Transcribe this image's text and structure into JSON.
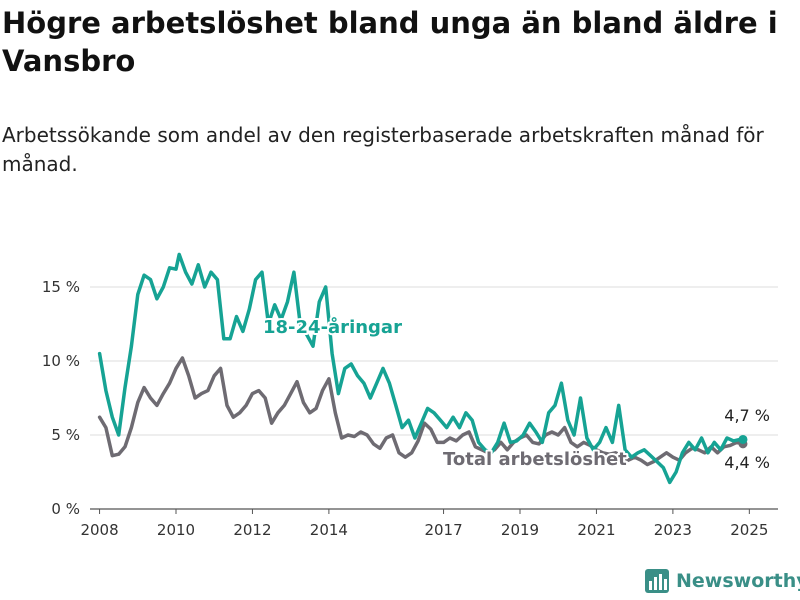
{
  "header": {
    "title": "Högre arbetslöshet bland unga än bland äldre i Vansbro",
    "subtitle": "Arbetssökande som andel av den registerbaserade arbetskraften månad för månad."
  },
  "footer": {
    "brand": "Newsworthy",
    "logo_icon": "bar-chart-logo-icon"
  },
  "chart_data": {
    "type": "line",
    "x_ticks": [
      "2008",
      "2010",
      "2012",
      "2014",
      "2017",
      "2019",
      "2021",
      "2023",
      "2025"
    ],
    "y_ticks": [
      "0 %",
      "5 %",
      "10 %",
      "15 %"
    ],
    "ylim": [
      0,
      17.5
    ],
    "grid": true,
    "series": [
      {
        "name": "18-24-åringar",
        "color": "#16a394",
        "end_label": "4,7 %",
        "points": [
          [
            "2008-01",
            10.5
          ],
          [
            "2008-03",
            8.0
          ],
          [
            "2008-05",
            6.2
          ],
          [
            "2008-07",
            5.0
          ],
          [
            "2008-09",
            8.2
          ],
          [
            "2008-11",
            11.0
          ],
          [
            "2009-01",
            14.5
          ],
          [
            "2009-03",
            15.8
          ],
          [
            "2009-05",
            15.5
          ],
          [
            "2009-07",
            14.2
          ],
          [
            "2009-09",
            15.0
          ],
          [
            "2009-11",
            16.3
          ],
          [
            "2010-01",
            16.2
          ],
          [
            "2010-02",
            17.2
          ],
          [
            "2010-04",
            16.0
          ],
          [
            "2010-06",
            15.2
          ],
          [
            "2010-08",
            16.5
          ],
          [
            "2010-10",
            15.0
          ],
          [
            "2010-12",
            16.0
          ],
          [
            "2011-02",
            15.5
          ],
          [
            "2011-04",
            11.5
          ],
          [
            "2011-06",
            11.5
          ],
          [
            "2011-08",
            13.0
          ],
          [
            "2011-10",
            12.0
          ],
          [
            "2011-12",
            13.5
          ],
          [
            "2012-02",
            15.5
          ],
          [
            "2012-04",
            16.0
          ],
          [
            "2012-06",
            12.5
          ],
          [
            "2012-08",
            13.8
          ],
          [
            "2012-10",
            12.8
          ],
          [
            "2012-12",
            14.0
          ],
          [
            "2013-02",
            16.0
          ],
          [
            "2013-04",
            12.5
          ],
          [
            "2013-06",
            11.8
          ],
          [
            "2013-08",
            11.0
          ],
          [
            "2013-10",
            14.0
          ],
          [
            "2013-12",
            15.0
          ],
          [
            "2014-02",
            10.5
          ],
          [
            "2014-04",
            7.8
          ],
          [
            "2014-06",
            9.5
          ],
          [
            "2014-08",
            9.8
          ],
          [
            "2014-10",
            9.0
          ],
          [
            "2014-12",
            8.5
          ],
          [
            "2015-02",
            7.5
          ],
          [
            "2015-04",
            8.5
          ],
          [
            "2015-06",
            9.5
          ],
          [
            "2015-08",
            8.5
          ],
          [
            "2015-10",
            7.0
          ],
          [
            "2015-12",
            5.5
          ],
          [
            "2016-02",
            6.0
          ],
          [
            "2016-04",
            4.8
          ],
          [
            "2016-06",
            5.8
          ],
          [
            "2016-08",
            6.8
          ],
          [
            "2016-10",
            6.5
          ],
          [
            "2016-12",
            6.0
          ],
          [
            "2017-02",
            5.5
          ],
          [
            "2017-04",
            6.2
          ],
          [
            "2017-06",
            5.5
          ],
          [
            "2017-08",
            6.5
          ],
          [
            "2017-10",
            6.0
          ],
          [
            "2017-12",
            4.5
          ],
          [
            "2018-02",
            4.0
          ],
          [
            "2018-04",
            3.8
          ],
          [
            "2018-06",
            4.5
          ],
          [
            "2018-08",
            5.8
          ],
          [
            "2018-10",
            4.5
          ],
          [
            "2018-12",
            4.6
          ],
          [
            "2019-02",
            5.0
          ],
          [
            "2019-04",
            5.8
          ],
          [
            "2019-06",
            5.2
          ],
          [
            "2019-08",
            4.5
          ],
          [
            "2019-10",
            6.5
          ],
          [
            "2019-12",
            7.0
          ],
          [
            "2020-02",
            8.5
          ],
          [
            "2020-04",
            6.0
          ],
          [
            "2020-06",
            5.0
          ],
          [
            "2020-08",
            7.5
          ],
          [
            "2020-10",
            4.8
          ],
          [
            "2020-12",
            4.0
          ],
          [
            "2021-02",
            4.5
          ],
          [
            "2021-04",
            5.5
          ],
          [
            "2021-06",
            4.5
          ],
          [
            "2021-08",
            7.0
          ],
          [
            "2021-10",
            4.0
          ],
          [
            "2021-12",
            3.5
          ],
          [
            "2022-02",
            3.8
          ],
          [
            "2022-04",
            4.0
          ],
          [
            "2022-06",
            3.6
          ],
          [
            "2022-08",
            3.2
          ],
          [
            "2022-10",
            2.8
          ],
          [
            "2022-12",
            1.8
          ],
          [
            "2023-02",
            2.5
          ],
          [
            "2023-04",
            3.8
          ],
          [
            "2023-06",
            4.5
          ],
          [
            "2023-08",
            4.0
          ],
          [
            "2023-10",
            4.8
          ],
          [
            "2023-12",
            3.8
          ],
          [
            "2024-02",
            4.5
          ],
          [
            "2024-04",
            4.0
          ],
          [
            "2024-06",
            4.8
          ],
          [
            "2024-08",
            4.6
          ],
          [
            "2024-10",
            4.7
          ],
          [
            "2024-11",
            4.7
          ]
        ]
      },
      {
        "name": "Total arbetslöshet",
        "color": "#6e6b72",
        "end_label": "4,4 %",
        "points": [
          [
            "2008-01",
            6.2
          ],
          [
            "2008-03",
            5.5
          ],
          [
            "2008-05",
            3.6
          ],
          [
            "2008-07",
            3.7
          ],
          [
            "2008-09",
            4.2
          ],
          [
            "2008-11",
            5.5
          ],
          [
            "2009-01",
            7.2
          ],
          [
            "2009-03",
            8.2
          ],
          [
            "2009-05",
            7.5
          ],
          [
            "2009-07",
            7.0
          ],
          [
            "2009-09",
            7.8
          ],
          [
            "2009-11",
            8.5
          ],
          [
            "2010-01",
            9.5
          ],
          [
            "2010-03",
            10.2
          ],
          [
            "2010-05",
            9.0
          ],
          [
            "2010-07",
            7.5
          ],
          [
            "2010-09",
            7.8
          ],
          [
            "2010-11",
            8.0
          ],
          [
            "2011-01",
            9.0
          ],
          [
            "2011-03",
            9.5
          ],
          [
            "2011-05",
            7.0
          ],
          [
            "2011-07",
            6.2
          ],
          [
            "2011-09",
            6.5
          ],
          [
            "2011-11",
            7.0
          ],
          [
            "2012-01",
            7.8
          ],
          [
            "2012-03",
            8.0
          ],
          [
            "2012-05",
            7.5
          ],
          [
            "2012-07",
            5.8
          ],
          [
            "2012-09",
            6.5
          ],
          [
            "2012-11",
            7.0
          ],
          [
            "2013-01",
            7.8
          ],
          [
            "2013-03",
            8.6
          ],
          [
            "2013-05",
            7.2
          ],
          [
            "2013-07",
            6.5
          ],
          [
            "2013-09",
            6.8
          ],
          [
            "2013-11",
            8.0
          ],
          [
            "2014-01",
            8.8
          ],
          [
            "2014-03",
            6.5
          ],
          [
            "2014-05",
            4.8
          ],
          [
            "2014-07",
            5.0
          ],
          [
            "2014-09",
            4.9
          ],
          [
            "2014-11",
            5.2
          ],
          [
            "2015-01",
            5.0
          ],
          [
            "2015-03",
            4.4
          ],
          [
            "2015-05",
            4.1
          ],
          [
            "2015-07",
            4.8
          ],
          [
            "2015-09",
            5.0
          ],
          [
            "2015-11",
            3.8
          ],
          [
            "2016-01",
            3.5
          ],
          [
            "2016-03",
            3.8
          ],
          [
            "2016-05",
            4.6
          ],
          [
            "2016-07",
            5.8
          ],
          [
            "2016-09",
            5.4
          ],
          [
            "2016-11",
            4.5
          ],
          [
            "2017-01",
            4.5
          ],
          [
            "2017-03",
            4.8
          ],
          [
            "2017-05",
            4.6
          ],
          [
            "2017-07",
            5.0
          ],
          [
            "2017-09",
            5.2
          ],
          [
            "2017-11",
            4.2
          ],
          [
            "2018-01",
            4.0
          ],
          [
            "2018-03",
            3.8
          ],
          [
            "2018-05",
            4.0
          ],
          [
            "2018-07",
            4.5
          ],
          [
            "2018-09",
            4.0
          ],
          [
            "2018-11",
            4.5
          ],
          [
            "2019-01",
            4.8
          ],
          [
            "2019-03",
            5.0
          ],
          [
            "2019-05",
            4.5
          ],
          [
            "2019-07",
            4.4
          ],
          [
            "2019-09",
            5.0
          ],
          [
            "2019-11",
            5.2
          ],
          [
            "2020-01",
            5.0
          ],
          [
            "2020-03",
            5.5
          ],
          [
            "2020-05",
            4.5
          ],
          [
            "2020-07",
            4.2
          ],
          [
            "2020-09",
            4.5
          ],
          [
            "2020-11",
            4.3
          ],
          [
            "2021-01",
            4.0
          ],
          [
            "2021-03",
            3.8
          ],
          [
            "2021-05",
            3.7
          ],
          [
            "2021-07",
            3.8
          ],
          [
            "2021-09",
            3.6
          ],
          [
            "2021-11",
            3.3
          ],
          [
            "2022-01",
            3.5
          ],
          [
            "2022-03",
            3.3
          ],
          [
            "2022-05",
            3.0
          ],
          [
            "2022-07",
            3.2
          ],
          [
            "2022-09",
            3.5
          ],
          [
            "2022-11",
            3.8
          ],
          [
            "2023-01",
            3.5
          ],
          [
            "2023-03",
            3.3
          ],
          [
            "2023-05",
            3.8
          ],
          [
            "2023-07",
            4.1
          ],
          [
            "2023-09",
            4.0
          ],
          [
            "2023-11",
            3.8
          ],
          [
            "2024-01",
            4.2
          ],
          [
            "2024-03",
            3.8
          ],
          [
            "2024-05",
            4.2
          ],
          [
            "2024-07",
            4.3
          ],
          [
            "2024-09",
            4.5
          ],
          [
            "2024-11",
            4.4
          ]
        ]
      }
    ]
  }
}
